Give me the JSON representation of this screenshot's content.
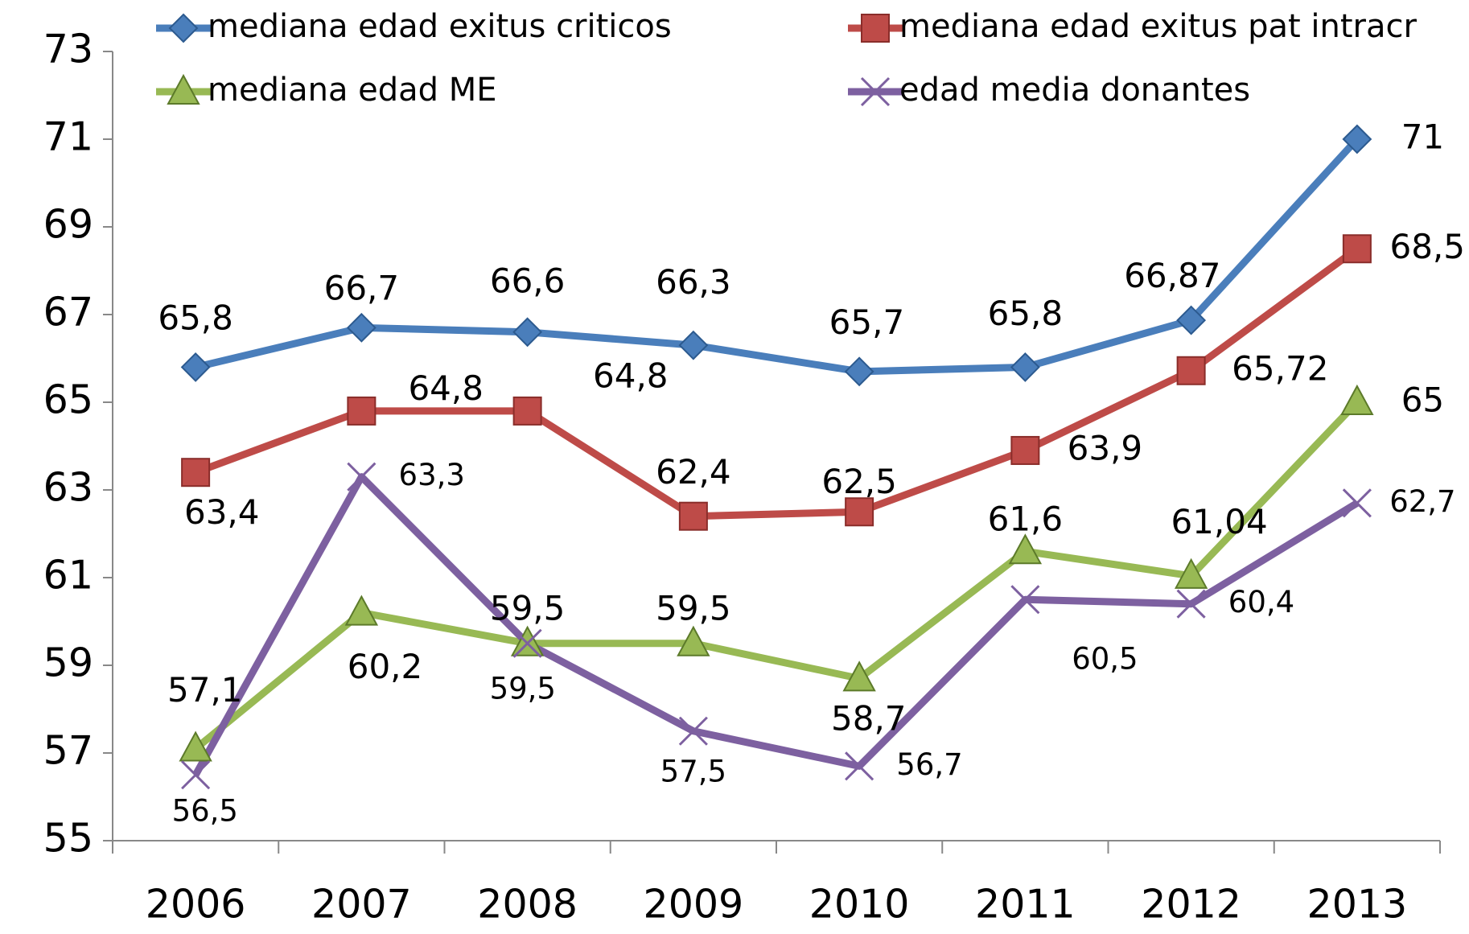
{
  "chart_data": {
    "type": "line",
    "categories": [
      "2006",
      "2007",
      "2008",
      "2009",
      "2010",
      "2011",
      "2012",
      "2013"
    ],
    "series": [
      {
        "name": "mediana edad exitus criticos",
        "color": "#4a7ebb",
        "marker": "diamond",
        "values": [
          65.8,
          66.7,
          66.6,
          66.3,
          65.7,
          65.8,
          66.87,
          71
        ],
        "value_labels": [
          "65,8",
          "66,7",
          "66,6",
          "66,3",
          "65,7",
          "65,8",
          "66,87",
          "71"
        ]
      },
      {
        "name": "mediana edad exitus pat intracr",
        "color": "#be4b48",
        "marker": "square",
        "values": [
          63.4,
          64.8,
          64.8,
          62.4,
          62.5,
          63.9,
          65.72,
          68.5
        ],
        "value_labels": [
          "63,4",
          "64,8",
          "64,8",
          "62,4",
          "62,5",
          "63,9",
          "65,72",
          "68,5"
        ]
      },
      {
        "name": "mediana edad ME",
        "color": "#98b954",
        "marker": "triangle",
        "values": [
          57.1,
          60.2,
          59.5,
          59.5,
          58.7,
          61.6,
          61.04,
          65
        ],
        "value_labels": [
          "57,1",
          "60,2",
          "59,5",
          "59,5",
          "58,7",
          "61,6",
          "61,04",
          "65"
        ]
      },
      {
        "name": "edad media donantes",
        "color": "#7d60a0",
        "marker": "x",
        "values": [
          56.5,
          63.3,
          59.5,
          57.5,
          56.7,
          60.5,
          60.4,
          62.7
        ],
        "value_labels": [
          "56,5",
          "63,3",
          "59,5",
          "57,5",
          "56,7",
          "60,5",
          "60,4",
          "62,7"
        ]
      }
    ],
    "ylim": [
      55,
      73
    ],
    "yticks": [
      55,
      57,
      59,
      61,
      63,
      65,
      67,
      69,
      71,
      73
    ],
    "legend": "top",
    "grid": false
  }
}
